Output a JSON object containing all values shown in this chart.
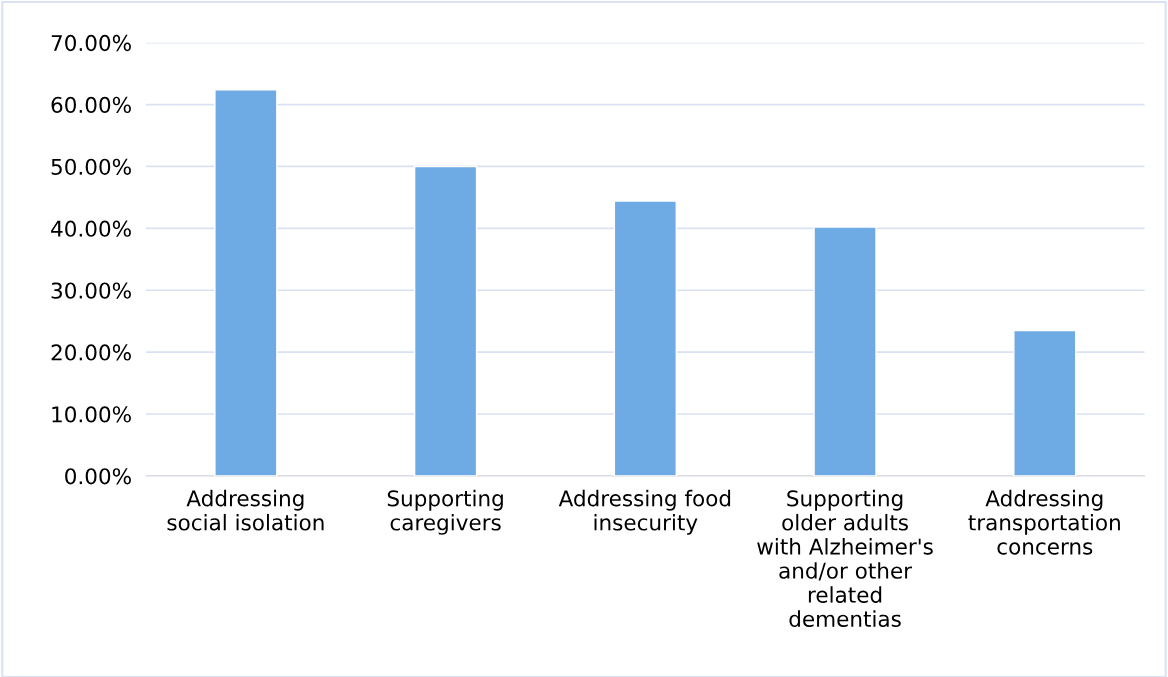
{
  "chart_data": {
    "type": "bar",
    "categories": [
      "Addressing\nsocial isolation",
      "Supporting\ncaregivers",
      "Addressing food\ninsecurity",
      "Supporting\nolder adults\nwith Alzheimer's\nand/or other\nrelated\ndementias",
      "Addressing\ntransportation\nconcerns"
    ],
    "values": [
      62.4,
      50.0,
      44.4,
      40.2,
      23.5
    ],
    "color": "#6eaae3",
    "ylim": [
      0,
      70
    ],
    "yticks": [
      {
        "value": 0,
        "label": "0.00%"
      },
      {
        "value": 10,
        "label": "10.00%"
      },
      {
        "value": 20,
        "label": "20.00%"
      },
      {
        "value": 30,
        "label": "30.00%"
      },
      {
        "value": 40,
        "label": "40.00%"
      },
      {
        "value": 50,
        "label": "50.00%"
      },
      {
        "value": 60,
        "label": "60.00%"
      },
      {
        "value": 70,
        "label": "70.00%"
      }
    ],
    "grid": "y",
    "legend": false
  }
}
